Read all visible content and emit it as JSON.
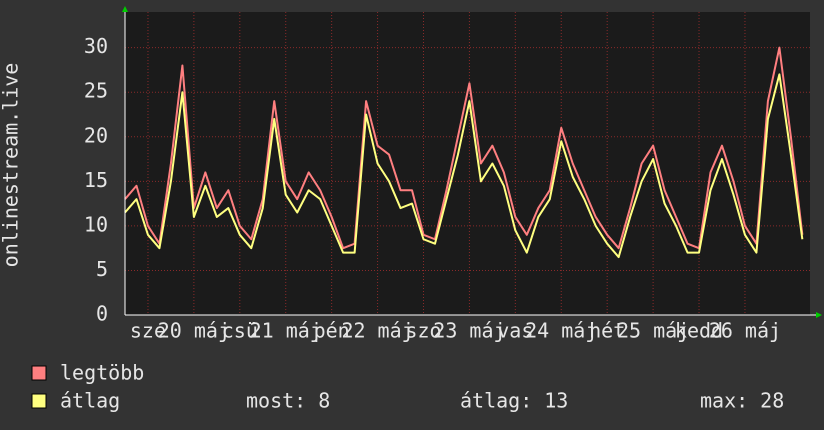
{
  "chart_data": {
    "type": "line",
    "y_label": "onlinestream.live",
    "x": [
      0,
      3,
      6,
      9,
      12,
      15,
      18,
      21,
      24,
      27,
      30,
      33,
      36,
      39,
      42,
      45,
      48,
      51,
      54,
      57,
      60,
      63,
      66,
      69,
      72,
      75,
      78,
      81,
      84,
      87,
      90,
      93,
      96,
      99,
      102,
      105,
      108,
      111,
      114,
      117,
      120,
      123,
      126,
      129,
      132,
      135,
      138,
      141,
      144,
      147,
      150,
      153,
      156,
      159,
      162,
      165,
      168,
      171,
      174,
      177
    ],
    "series": [
      {
        "name": "legtöbb",
        "color": "#ff7f80",
        "values": [
          13,
          14.5,
          10,
          8,
          17,
          28,
          12,
          16,
          12,
          14,
          10,
          8.5,
          13,
          24,
          15,
          13,
          16,
          14,
          11,
          7.5,
          8,
          24,
          19,
          18,
          14,
          14,
          9,
          8.5,
          14,
          20,
          26,
          17,
          19,
          16,
          11,
          9,
          12,
          14,
          21,
          17,
          14,
          11,
          9,
          7.5,
          12,
          17,
          19,
          14,
          11,
          8,
          7.5,
          16,
          19,
          15,
          10,
          8,
          24,
          30,
          20,
          9
        ]
      },
      {
        "name": "átlag",
        "color": "#ffff80",
        "values": [
          11.5,
          13,
          9,
          7.5,
          15,
          25,
          11,
          14.5,
          11,
          12,
          9,
          7.5,
          12,
          22,
          13.5,
          11.5,
          14,
          13,
          10,
          7,
          7,
          22.5,
          17,
          15,
          12,
          12.5,
          8.5,
          8,
          13,
          18,
          24,
          15,
          17,
          14.5,
          9.5,
          7,
          11,
          13,
          19.5,
          15.5,
          13,
          10,
          8,
          6.5,
          11,
          15,
          17.5,
          12.5,
          10,
          7,
          7,
          14,
          17.5,
          13.5,
          9,
          7,
          22,
          27,
          18,
          8.5
        ]
      }
    ],
    "xlim": [
      0,
      179
    ],
    "xticks": [
      {
        "value": 6,
        "label": "sze"
      },
      {
        "value": 18,
        "label": "20 máj"
      },
      {
        "value": 30,
        "label": "csü"
      },
      {
        "value": 42,
        "label": "21 máj"
      },
      {
        "value": 54,
        "label": "pén"
      },
      {
        "value": 66,
        "label": "22 máj"
      },
      {
        "value": 78,
        "label": "szo"
      },
      {
        "value": 90,
        "label": "23 máj"
      },
      {
        "value": 102,
        "label": "vas"
      },
      {
        "value": 114,
        "label": "24 máj"
      },
      {
        "value": 126,
        "label": "hét"
      },
      {
        "value": 138,
        "label": "25 máj"
      },
      {
        "value": 150,
        "label": "kedd"
      },
      {
        "value": 162,
        "label": "26 máj"
      }
    ],
    "ylim": [
      0,
      34
    ],
    "yticks": [
      0,
      5,
      10,
      15,
      20,
      25,
      30
    ],
    "grid": true,
    "stats": [
      {
        "label": "most:",
        "value": 8
      },
      {
        "label": "átlag:",
        "value": 13
      },
      {
        "label": "max:",
        "value": 28
      }
    ]
  }
}
